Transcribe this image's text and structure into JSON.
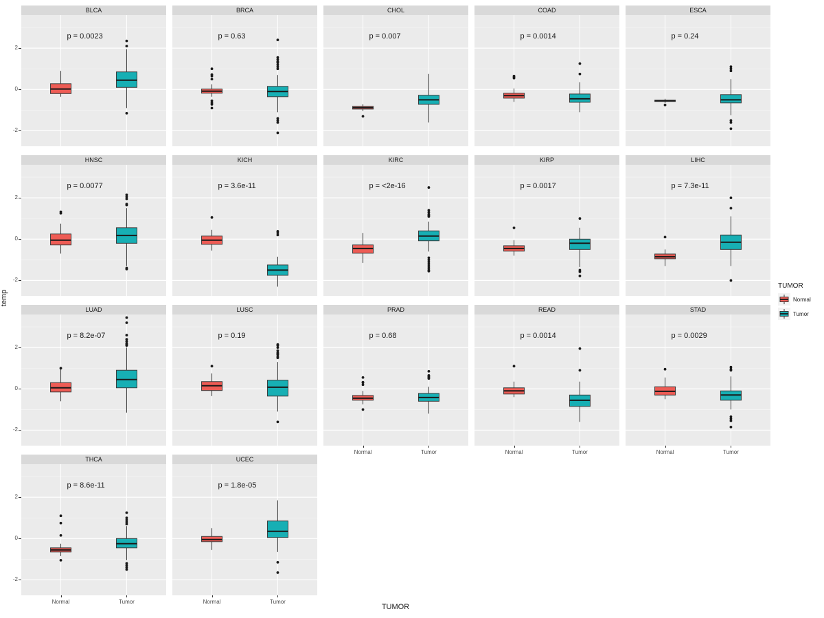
{
  "figure": {
    "y_axis_title": "temp",
    "x_axis_title": "TUMOR",
    "legend": {
      "title": "TUMOR",
      "entries": [
        {
          "label": "Normal",
          "color": "#EE5C55"
        },
        {
          "label": "Tumor",
          "color": "#17AFB4"
        }
      ]
    }
  },
  "colors": {
    "panel_bg": "#EBEBEB",
    "strip_bg": "#D9D9D9",
    "grid_major": "#FFFFFF",
    "grid_minor": "rgba(255,255,255,0.55)",
    "box_stroke": "#3A3A3A",
    "median_stroke": "#1A1A1A",
    "outlier": "#1A1A1A",
    "tick_text": "#4D4D4D",
    "p_text": "#1A1A1A"
  },
  "chart_data": {
    "type": "boxplot",
    "facet_layout": {
      "rows": 4,
      "cols": 5,
      "facet_count": 17
    },
    "categories": [
      "Normal",
      "Tumor"
    ],
    "y_ticks": [
      -2,
      0,
      2
    ],
    "y_minor_ticks": [
      -1,
      1,
      3
    ],
    "ylim": [
      -2.75,
      3.6
    ],
    "ylabel": "temp",
    "xlabel": "TUMOR",
    "legend_position": "right",
    "facets": [
      {
        "title": "BLCA",
        "p_label": "p = 0.0023",
        "boxes": [
          {
            "group": "Normal",
            "whisker_low": -0.35,
            "q1": -0.2,
            "median": 0.02,
            "q3": 0.28,
            "whisker_high": 0.9,
            "outliers": []
          },
          {
            "group": "Tumor",
            "whisker_low": -0.9,
            "q1": 0.1,
            "median": 0.45,
            "q3": 0.85,
            "whisker_high": 1.95,
            "outliers": [
              2.1,
              2.35,
              -1.15
            ]
          }
        ]
      },
      {
        "title": "BRCA",
        "p_label": "p = 0.63",
        "boxes": [
          {
            "group": "Normal",
            "whisker_low": -0.35,
            "q1": -0.18,
            "median": -0.08,
            "q3": 0.02,
            "whisker_high": 0.25,
            "outliers": [
              0.5,
              0.65,
              0.72,
              1.0,
              -0.55,
              -0.65,
              -0.72,
              -0.9
            ]
          },
          {
            "group": "Tumor",
            "whisker_low": -1.1,
            "q1": -0.35,
            "median": -0.1,
            "q3": 0.15,
            "whisker_high": 0.7,
            "outliers": [
              1.0,
              1.1,
              1.2,
              1.3,
              1.35,
              1.45,
              1.55,
              2.4,
              -1.4,
              -1.5,
              -1.6,
              -2.1
            ]
          }
        ]
      },
      {
        "title": "CHOL",
        "p_label": "p = 0.007",
        "boxes": [
          {
            "group": "Normal",
            "whisker_low": -1.05,
            "q1": -0.95,
            "median": -0.88,
            "q3": -0.82,
            "whisker_high": -0.72,
            "outliers": [
              -1.3
            ]
          },
          {
            "group": "Tumor",
            "whisker_low": -1.6,
            "q1": -0.72,
            "median": -0.5,
            "q3": -0.28,
            "whisker_high": 0.75,
            "outliers": []
          }
        ]
      },
      {
        "title": "COAD",
        "p_label": "p = 0.0014",
        "boxes": [
          {
            "group": "Normal",
            "whisker_low": -0.6,
            "q1": -0.42,
            "median": -0.3,
            "q3": -0.18,
            "whisker_high": 0.05,
            "outliers": [
              0.55,
              0.6,
              0.65
            ]
          },
          {
            "group": "Tumor",
            "whisker_low": -1.1,
            "q1": -0.62,
            "median": -0.45,
            "q3": -0.22,
            "whisker_high": 0.35,
            "outliers": [
              0.75,
              1.25
            ]
          }
        ]
      },
      {
        "title": "ESCA",
        "p_label": "p = 0.24",
        "boxes": [
          {
            "group": "Normal",
            "whisker_low": -0.65,
            "q1": -0.58,
            "median": -0.55,
            "q3": -0.52,
            "whisker_high": -0.45,
            "outliers": [
              -0.75
            ]
          },
          {
            "group": "Tumor",
            "whisker_low": -1.25,
            "q1": -0.65,
            "median": -0.5,
            "q3": -0.25,
            "whisker_high": 0.5,
            "outliers": [
              0.9,
              1.0,
              1.1,
              -1.5,
              -1.6,
              -1.9
            ]
          }
        ]
      },
      {
        "title": "HNSC",
        "p_label": "p = 0.0077",
        "boxes": [
          {
            "group": "Normal",
            "whisker_low": -0.7,
            "q1": -0.28,
            "median": -0.05,
            "q3": 0.25,
            "whisker_high": 0.75,
            "outliers": [
              1.25,
              1.32
            ]
          },
          {
            "group": "Tumor",
            "whisker_low": -1.3,
            "q1": -0.2,
            "median": 0.18,
            "q3": 0.55,
            "whisker_high": 1.5,
            "outliers": [
              1.65,
              1.7,
              1.95,
              2.05,
              2.15,
              -1.4,
              -1.45
            ]
          }
        ]
      },
      {
        "title": "KICH",
        "p_label": "p = 3.6e-11",
        "boxes": [
          {
            "group": "Normal",
            "whisker_low": -0.55,
            "q1": -0.25,
            "median": -0.05,
            "q3": 0.15,
            "whisker_high": 0.45,
            "outliers": [
              1.05
            ]
          },
          {
            "group": "Tumor",
            "whisker_low": -2.3,
            "q1": -1.75,
            "median": -1.5,
            "q3": -1.25,
            "whisker_high": -0.85,
            "outliers": [
              0.2,
              0.3,
              0.38
            ]
          }
        ]
      },
      {
        "title": "KIRC",
        "p_label": "p = <2e-16",
        "boxes": [
          {
            "group": "Normal",
            "whisker_low": -1.15,
            "q1": -0.68,
            "median": -0.45,
            "q3": -0.28,
            "whisker_high": 0.3,
            "outliers": []
          },
          {
            "group": "Tumor",
            "whisker_low": -0.6,
            "q1": -0.08,
            "median": 0.15,
            "q3": 0.4,
            "whisker_high": 0.85,
            "outliers": [
              1.1,
              1.15,
              1.2,
              1.3,
              1.4,
              2.5,
              -0.9,
              -1.0,
              -1.1,
              -1.2,
              -1.3,
              -1.4,
              -1.5,
              -1.55
            ]
          }
        ]
      },
      {
        "title": "KIRP",
        "p_label": "p = 0.0017",
        "boxes": [
          {
            "group": "Normal",
            "whisker_low": -0.8,
            "q1": -0.58,
            "median": -0.45,
            "q3": -0.32,
            "whisker_high": -0.05,
            "outliers": [
              0.55
            ]
          },
          {
            "group": "Tumor",
            "whisker_low": -1.35,
            "q1": -0.5,
            "median": -0.2,
            "q3": 0.0,
            "whisker_high": 0.55,
            "outliers": [
              1.0,
              -1.5,
              -1.58,
              -1.78
            ]
          }
        ]
      },
      {
        "title": "LIHC",
        "p_label": "p = 7.3e-11",
        "boxes": [
          {
            "group": "Normal",
            "whisker_low": -1.3,
            "q1": -0.95,
            "median": -0.85,
            "q3": -0.72,
            "whisker_high": -0.5,
            "outliers": [
              0.1
            ]
          },
          {
            "group": "Tumor",
            "whisker_low": -1.3,
            "q1": -0.5,
            "median": -0.15,
            "q3": 0.2,
            "whisker_high": 1.1,
            "outliers": [
              1.5,
              2.0,
              -2.0
            ]
          }
        ]
      },
      {
        "title": "LUAD",
        "p_label": "p = 8.2e-07",
        "boxes": [
          {
            "group": "Normal",
            "whisker_low": -0.6,
            "q1": -0.15,
            "median": 0.05,
            "q3": 0.3,
            "whisker_high": 0.95,
            "outliers": [
              1.0
            ]
          },
          {
            "group": "Tumor",
            "whisker_low": -1.15,
            "q1": 0.05,
            "median": 0.45,
            "q3": 0.9,
            "whisker_high": 2.0,
            "outliers": [
              2.1,
              2.15,
              2.2,
              2.3,
              2.4,
              2.6,
              3.2,
              3.45
            ]
          }
        ]
      },
      {
        "title": "LUSC",
        "p_label": "p = 0.19",
        "boxes": [
          {
            "group": "Normal",
            "whisker_low": -0.35,
            "q1": -0.08,
            "median": 0.15,
            "q3": 0.35,
            "whisker_high": 0.75,
            "outliers": [
              1.1
            ]
          },
          {
            "group": "Tumor",
            "whisker_low": -1.1,
            "q1": -0.35,
            "median": 0.08,
            "q3": 0.42,
            "whisker_high": 1.3,
            "outliers": [
              1.5,
              1.55,
              1.65,
              1.7,
              1.75,
              1.85,
              2.0,
              2.1,
              2.15,
              -1.6
            ]
          }
        ]
      },
      {
        "title": "PRAD",
        "p_label": "p = 0.68",
        "boxes": [
          {
            "group": "Normal",
            "whisker_low": -0.75,
            "q1": -0.55,
            "median": -0.45,
            "q3": -0.32,
            "whisker_high": -0.1,
            "outliers": [
              0.2,
              0.3,
              0.32,
              0.55,
              -1.0
            ]
          },
          {
            "group": "Tumor",
            "whisker_low": -1.2,
            "q1": -0.6,
            "median": -0.42,
            "q3": -0.22,
            "whisker_high": 0.1,
            "outliers": [
              0.5,
              0.55,
              0.6,
              0.65,
              0.85
            ]
          }
        ]
      },
      {
        "title": "READ",
        "p_label": "p = 0.0014",
        "boxes": [
          {
            "group": "Normal",
            "whisker_low": -0.4,
            "q1": -0.25,
            "median": -0.1,
            "q3": 0.05,
            "whisker_high": 0.35,
            "outliers": [
              1.1
            ]
          },
          {
            "group": "Tumor",
            "whisker_low": -1.6,
            "q1": -0.85,
            "median": -0.55,
            "q3": -0.3,
            "whisker_high": 0.35,
            "outliers": [
              0.9,
              1.95
            ]
          }
        ]
      },
      {
        "title": "STAD",
        "p_label": "p = 0.0029",
        "boxes": [
          {
            "group": "Normal",
            "whisker_low": -0.5,
            "q1": -0.3,
            "median": -0.12,
            "q3": 0.1,
            "whisker_high": 0.55,
            "outliers": [
              0.95
            ]
          },
          {
            "group": "Tumor",
            "whisker_low": -1.0,
            "q1": -0.55,
            "median": -0.3,
            "q3": -0.1,
            "whisker_high": 0.6,
            "outliers": [
              0.9,
              0.95,
              1.05,
              -1.35,
              -1.45,
              -1.55,
              -1.85
            ]
          }
        ]
      },
      {
        "title": "THCA",
        "p_label": "p = 8.6e-11",
        "boxes": [
          {
            "group": "Normal",
            "whisker_low": -0.85,
            "q1": -0.65,
            "median": -0.55,
            "q3": -0.45,
            "whisker_high": -0.25,
            "outliers": [
              0.15,
              0.75,
              1.1,
              -1.05
            ]
          },
          {
            "group": "Tumor",
            "whisker_low": -1.05,
            "q1": -0.45,
            "median": -0.25,
            "q3": 0.0,
            "whisker_high": 0.6,
            "outliers": [
              0.7,
              0.8,
              0.9,
              1.0,
              1.25,
              -1.2,
              -1.3,
              -1.4,
              -1.5
            ]
          }
        ]
      },
      {
        "title": "UCEC",
        "p_label": "p = 1.8e-05",
        "boxes": [
          {
            "group": "Normal",
            "whisker_low": -0.55,
            "q1": -0.15,
            "median": -0.05,
            "q3": 0.1,
            "whisker_high": 0.5,
            "outliers": []
          },
          {
            "group": "Tumor",
            "whisker_low": -0.65,
            "q1": 0.05,
            "median": 0.35,
            "q3": 0.85,
            "whisker_high": 1.85,
            "outliers": [
              -1.15,
              -1.65
            ]
          }
        ]
      }
    ]
  }
}
